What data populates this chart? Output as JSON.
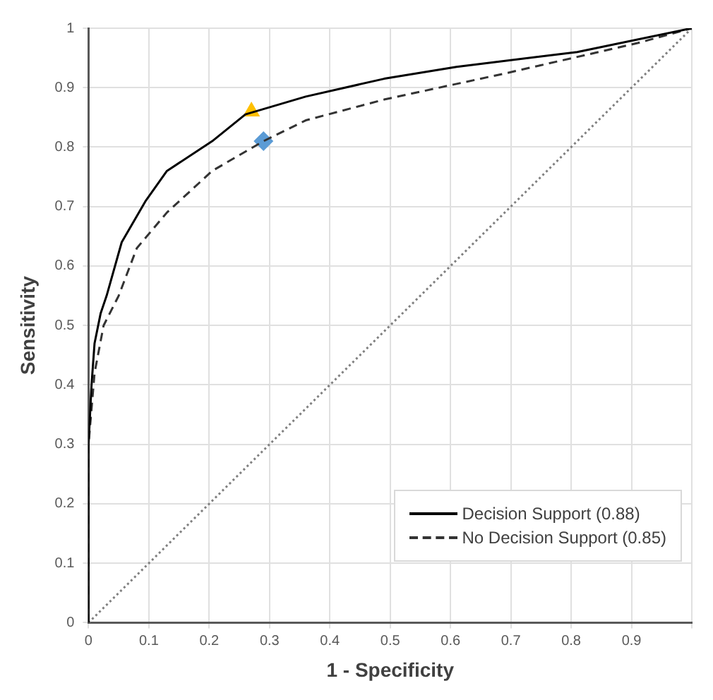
{
  "chart_data": {
    "type": "line",
    "xlabel": "1 - Specificity",
    "ylabel": "Sensitivity",
    "xlim": [
      0,
      1
    ],
    "ylim": [
      0,
      1
    ],
    "xticks": [
      0,
      0.1,
      0.2,
      0.3,
      0.4,
      0.5,
      0.6,
      0.7,
      0.8,
      0.9,
      {
        "value": 1,
        "label": null
      }
    ],
    "yticks": [
      0,
      0.1,
      0.2,
      0.3,
      0.4,
      0.5,
      0.6,
      0.7,
      0.8,
      0.9,
      1
    ],
    "grid": true,
    "legend": "bottom right",
    "marker": "none",
    "series": [
      {
        "name": "Decision Support (0.88)",
        "color": "#000000",
        "line_style": "solid",
        "x": [
          0,
          0,
          0.005,
          0.01,
          0.02,
          0.03,
          0.055,
          0.095,
          0.13,
          0.205,
          0.26,
          0.36,
          0.49,
          0.61,
          0.81,
          1
        ],
        "values": [
          0,
          0.3,
          0.4,
          0.47,
          0.52,
          0.55,
          0.64,
          0.71,
          0.76,
          0.81,
          0.855,
          0.885,
          0.915,
          0.935,
          0.96,
          1
        ]
      },
      {
        "name": "No Decision Support (0.85)",
        "color": "#333333",
        "line_style": "dashed",
        "x": [
          0,
          0,
          0.01,
          0.025,
          0.05,
          0.08,
          0.13,
          0.205,
          0.29,
          0.36,
          0.49,
          0.695,
          0.91,
          1
        ],
        "values": [
          0,
          0.3,
          0.42,
          0.5,
          0.55,
          0.63,
          0.69,
          0.76,
          0.81,
          0.845,
          0.88,
          0.925,
          0.975,
          1
        ]
      },
      {
        "color": "#808080",
        "line_style": "dotted",
        "x": [
          0,
          1
        ],
        "values": [
          0,
          1
        ]
      },
      {
        "type": "scatter",
        "color": "#ffc000",
        "marker": "triangle",
        "x": [
          0.27
        ],
        "values": [
          0.86
        ]
      },
      {
        "type": "scatter",
        "color": "#5b9bd5",
        "marker": "diamond",
        "x": [
          0.29
        ],
        "values": [
          0.81
        ]
      }
    ]
  }
}
